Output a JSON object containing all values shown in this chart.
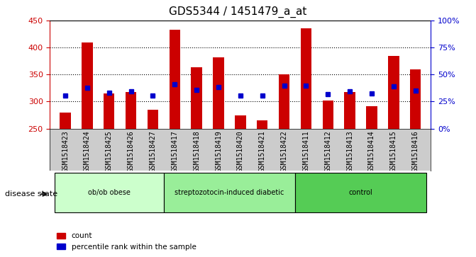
{
  "title": "GDS5344 / 1451479_a_at",
  "samples": [
    "GSM1518423",
    "GSM1518424",
    "GSM1518425",
    "GSM1518426",
    "GSM1518427",
    "GSM1518417",
    "GSM1518418",
    "GSM1518419",
    "GSM1518420",
    "GSM1518421",
    "GSM1518422",
    "GSM1518411",
    "GSM1518412",
    "GSM1518413",
    "GSM1518414",
    "GSM1518415",
    "GSM1518416"
  ],
  "counts": [
    280,
    410,
    315,
    317,
    285,
    433,
    363,
    382,
    274,
    265,
    350,
    435,
    302,
    318,
    291,
    384,
    360
  ],
  "percentile_values": [
    311,
    326,
    316,
    319,
    311,
    332,
    321,
    327,
    311,
    311,
    330,
    329,
    314,
    319,
    315,
    328,
    320
  ],
  "groups": [
    {
      "label": "ob/ob obese",
      "start": 0,
      "end": 5
    },
    {
      "label": "streptozotocin-induced diabetic",
      "start": 5,
      "end": 11
    },
    {
      "label": "control",
      "start": 11,
      "end": 17
    }
  ],
  "group_colors": [
    "#ccffcc",
    "#99ee99",
    "#55cc55"
  ],
  "baseline": 250,
  "ylim": [
    250,
    450
  ],
  "y2lim": [
    0,
    100
  ],
  "yticks": [
    250,
    300,
    350,
    400,
    450
  ],
  "y2ticks": [
    0,
    25,
    50,
    75,
    100
  ],
  "bar_color": "#cc0000",
  "dot_color": "#0000cc",
  "plot_bg": "#ffffff",
  "gray_bg": "#cccccc",
  "title_fontsize": 11,
  "tick_fontsize": 7,
  "label_fontsize": 8,
  "disease_state_label": "disease state"
}
